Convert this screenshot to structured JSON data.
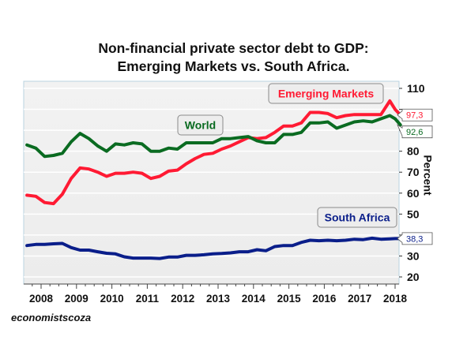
{
  "chart_data": {
    "type": "line",
    "title_line1": "Non-financial private sector debt to GDP:",
    "title_line2": "Emerging Markets vs. South Africa.",
    "ylabel": "Percent",
    "credit": "economistscoza",
    "ylim": [
      15,
      112
    ],
    "yticks": [
      20,
      30,
      40,
      50,
      60,
      70,
      80,
      90,
      100,
      110
    ],
    "ytick_labels": [
      "20",
      "30",
      "",
      "50",
      "60",
      "70",
      "80",
      "",
      "",
      "110"
    ],
    "xlim": [
      2007.5,
      2018.25
    ],
    "xticks": [
      2008,
      2009,
      2010,
      2011,
      2012,
      2013,
      2014,
      2015,
      2016,
      2017,
      2018
    ],
    "xtick_labels": [
      "2008",
      "2009",
      "2010",
      "2011",
      "2012",
      "2013",
      "2014",
      "2015",
      "2016",
      "2017",
      "2018"
    ],
    "grid": true,
    "series": [
      {
        "name": "Emerging Markets",
        "color": "#ff1a33",
        "last_label": "97,3",
        "x": [
          2007.6,
          2007.85,
          2008.1,
          2008.35,
          2008.6,
          2008.85,
          2009.1,
          2009.35,
          2009.6,
          2009.85,
          2010.1,
          2010.35,
          2010.6,
          2010.85,
          2011.1,
          2011.35,
          2011.6,
          2011.85,
          2012.1,
          2012.35,
          2012.6,
          2012.85,
          2013.1,
          2013.35,
          2013.6,
          2013.85,
          2014.1,
          2014.35,
          2014.6,
          2014.85,
          2015.1,
          2015.35,
          2015.6,
          2015.85,
          2016.1,
          2016.35,
          2016.6,
          2016.85,
          2017.1,
          2017.35,
          2017.6,
          2017.85,
          2018.0,
          2018.15
        ],
        "values": [
          59,
          58.5,
          55.5,
          55,
          59.5,
          67,
          72,
          71.5,
          70,
          68,
          69.5,
          69.5,
          70,
          69.5,
          67,
          68,
          70.5,
          71,
          74,
          76.5,
          78.5,
          79,
          81,
          82.5,
          84.5,
          86.5,
          86,
          86.5,
          89,
          92,
          92,
          93.5,
          98.5,
          98.5,
          98,
          96,
          97,
          97.5,
          97.5,
          97.5,
          97.5,
          104,
          100,
          97.3
        ]
      },
      {
        "name": "World",
        "color": "#0a6b21",
        "last_label": "92,6",
        "x": [
          2007.6,
          2007.85,
          2008.1,
          2008.35,
          2008.6,
          2008.85,
          2009.1,
          2009.35,
          2009.6,
          2009.85,
          2010.1,
          2010.35,
          2010.6,
          2010.85,
          2011.1,
          2011.35,
          2011.6,
          2011.85,
          2012.1,
          2012.35,
          2012.6,
          2012.85,
          2013.1,
          2013.35,
          2013.6,
          2013.85,
          2014.1,
          2014.35,
          2014.6,
          2014.85,
          2015.1,
          2015.35,
          2015.6,
          2015.85,
          2016.1,
          2016.35,
          2016.6,
          2016.85,
          2017.1,
          2017.35,
          2017.6,
          2017.85,
          2018.0,
          2018.15
        ],
        "values": [
          83,
          81.5,
          77.5,
          78,
          79,
          84.5,
          88.5,
          86,
          82.5,
          80,
          83.5,
          83,
          84,
          83.5,
          80,
          80,
          81.5,
          81,
          84,
          84,
          84,
          84,
          86,
          86,
          86.5,
          87,
          85,
          84,
          84,
          88,
          88,
          89,
          93.5,
          93.5,
          94,
          91,
          92.5,
          94,
          94.5,
          94,
          95.5,
          97,
          95.5,
          92.6
        ]
      },
      {
        "name": "South Africa",
        "color": "#0a1e8a",
        "last_label": "38,3",
        "x": [
          2007.6,
          2007.85,
          2008.1,
          2008.35,
          2008.6,
          2008.85,
          2009.1,
          2009.35,
          2009.6,
          2009.85,
          2010.1,
          2010.35,
          2010.6,
          2010.85,
          2011.1,
          2011.35,
          2011.6,
          2011.85,
          2012.1,
          2012.35,
          2012.6,
          2012.85,
          2013.1,
          2013.35,
          2013.6,
          2013.85,
          2014.1,
          2014.35,
          2014.6,
          2014.85,
          2015.1,
          2015.35,
          2015.6,
          2015.85,
          2016.1,
          2016.35,
          2016.6,
          2016.85,
          2017.1,
          2017.35,
          2017.6,
          2017.85,
          2018.0,
          2018.15
        ],
        "values": [
          35,
          35.5,
          35.5,
          35.8,
          36,
          34,
          32.8,
          32.8,
          32,
          31.3,
          31,
          29.6,
          29,
          29,
          29,
          28.8,
          29.5,
          29.5,
          30.3,
          30.3,
          30.6,
          31,
          31.2,
          31.5,
          32,
          32,
          33,
          32.5,
          34.5,
          35,
          35,
          36.5,
          37.5,
          37.3,
          37.5,
          37.3,
          37.5,
          38,
          37.8,
          38.5,
          38,
          38.2,
          38.3,
          38.3
        ]
      }
    ],
    "annotations": [
      {
        "text": "Emerging Markets",
        "color": "#ff1a33"
      },
      {
        "text": "World",
        "color": "#0a6b21"
      },
      {
        "text": "South Africa",
        "color": "#0a1e8a"
      }
    ]
  }
}
